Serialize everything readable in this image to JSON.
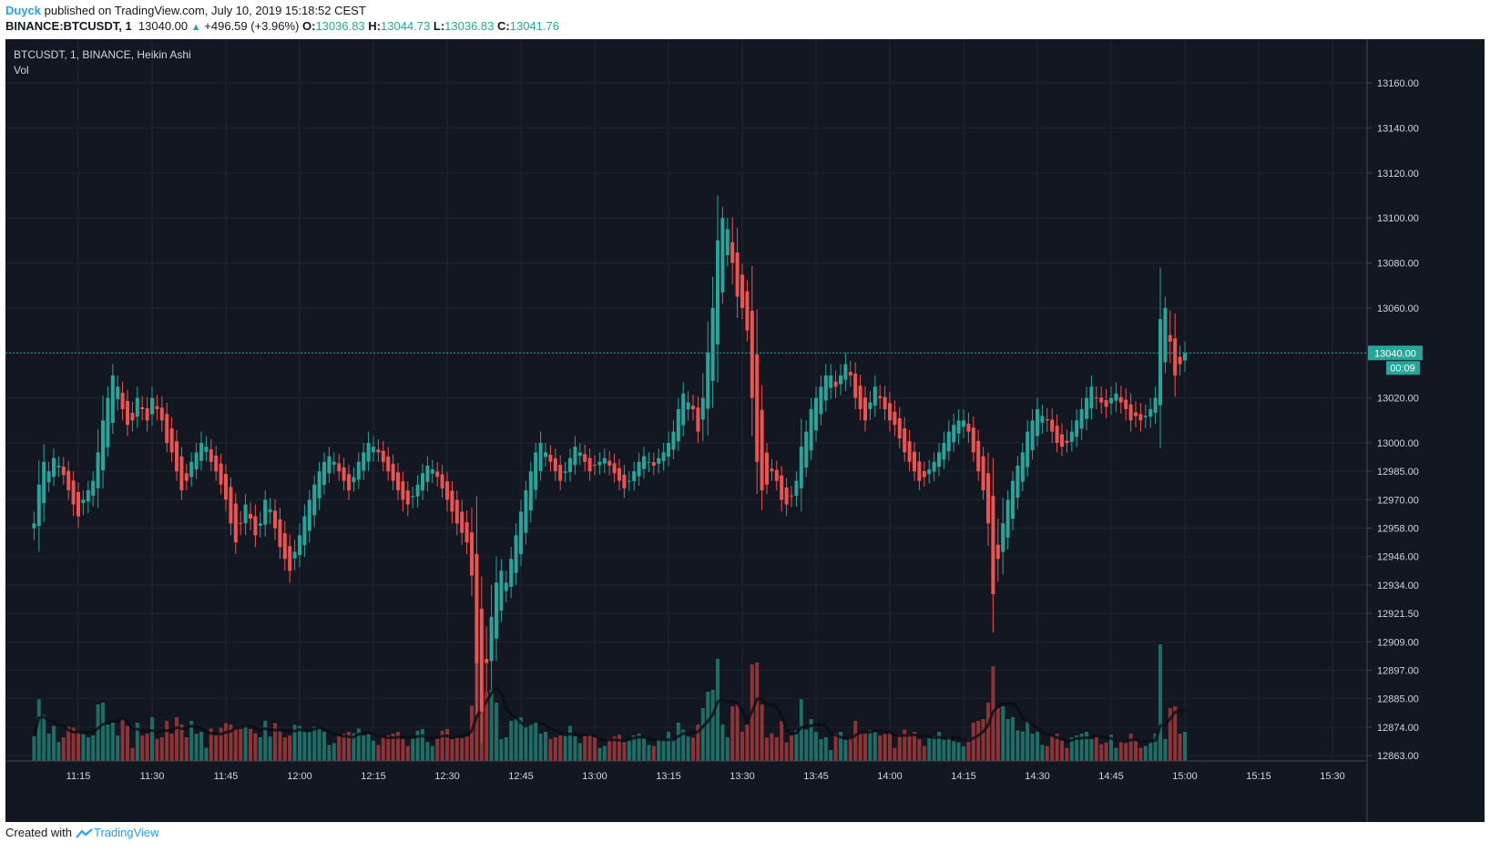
{
  "header": {
    "author": "Duyck",
    "published_text": " published on TradingView.com, July 10, 2019 15:18:52 CEST",
    "symbol_line": "BINANCE:BTCUSDT, 1",
    "last": "13040.00",
    "change": "+496.59 (+3.96%)",
    "o_label": "O:",
    "o": "13036.83",
    "h_label": "H:",
    "h": "13044.73",
    "l_label": "L:",
    "l": "13036.83",
    "c_label": "C:",
    "c": "13041.76"
  },
  "legend": {
    "title": "BTCUSDT, 1, BINANCE, Heikin Ashi",
    "indicator": "Vol"
  },
  "footer": {
    "created_with": "Created with",
    "brand": "TradingView"
  },
  "colors": {
    "background": "#131722",
    "grid": "#1f2431",
    "up": "#26a69a",
    "down": "#ef5350",
    "vol_up": "#1c6e66",
    "vol_down": "#8f3436",
    "axis_text": "#d1d4dc",
    "price_tag": "#26a69a"
  },
  "chart_data": {
    "type": "candlestick",
    "ylim": [
      12863.0,
      13180.0
    ],
    "y_ticks": [
      "13160.00",
      "13140.00",
      "13120.00",
      "13100.00",
      "13080.00",
      "13060.00",
      "13040.00",
      "13020.00",
      "13000.00",
      "12985.00",
      "12970.00",
      "12958.00",
      "12946.00",
      "12934.00",
      "12921.50",
      "12909.00",
      "12897.00",
      "12885.00",
      "12874.00",
      "12863.00"
    ],
    "x_ticks": [
      "11:15",
      "11:30",
      "11:45",
      "12:00",
      "12:15",
      "12:30",
      "12:45",
      "13:00",
      "13:15",
      "13:30",
      "13:45",
      "14:00",
      "14:15",
      "14:30",
      "14:45",
      "15:00",
      "15:15",
      "15:30"
    ],
    "x_start": "11:06",
    "minutes_per_bar": 1,
    "last_price": "13040.00",
    "countdown": "00:09",
    "close": [
      12960,
      12978,
      12990,
      12985,
      12992,
      12988,
      12983,
      12975,
      12968,
      12963,
      12970,
      12975,
      12980,
      12995,
      13010,
      13020,
      13030,
      13025,
      13015,
      13008,
      13010,
      13020,
      13015,
      13010,
      13020,
      13015,
      13010,
      13000,
      12995,
      12985,
      12975,
      12980,
      12990,
      12995,
      13000,
      12998,
      12990,
      12985,
      12978,
      12970,
      12960,
      12952,
      12960,
      12968,
      12962,
      12955,
      12960,
      12970,
      12966,
      12958,
      12950,
      12945,
      12940,
      12948,
      12955,
      12963,
      12970,
      12978,
      12985,
      12990,
      12993,
      12990,
      12985,
      12980,
      12975,
      12982,
      12990,
      12995,
      13000,
      12998,
      12995,
      12990,
      12985,
      12980,
      12975,
      12970,
      12968,
      12972,
      12978,
      12984,
      12988,
      12986,
      12982,
      12976,
      12970,
      12965,
      12960,
      12956,
      12952,
      12938,
      12900,
      12880,
      12900,
      12920,
      12935,
      12940,
      12935,
      12945,
      12955,
      12965,
      12975,
      12985,
      12995,
      13000,
      12995,
      12990,
      12985,
      12980,
      12985,
      12992,
      12998,
      12995,
      12990,
      12985,
      12988,
      12990,
      12992,
      12988,
      12984,
      12980,
      12976,
      12980,
      12985,
      12990,
      12993,
      12990,
      12988,
      12992,
      12995,
      13000,
      13005,
      13015,
      13022,
      13018,
      13015,
      13005,
      13020,
      13040,
      13060,
      13090,
      13100,
      13095,
      13080,
      13065,
      13060,
      13050,
      13020,
      12990,
      12975,
      12978,
      12985,
      12980,
      12970,
      12968,
      12972,
      12980,
      12998,
      13005,
      13015,
      13020,
      13025,
      13030,
      13030,
      13025,
      13030,
      13035,
      13030,
      13020,
      13015,
      13010,
      13018,
      13025,
      13020,
      13015,
      13010,
      13008,
      13002,
      12995,
      12990,
      12985,
      12980,
      12982,
      12986,
      12990,
      12995,
      13000,
      13005,
      13008,
      13010,
      13010,
      13005,
      12995,
      12985,
      12975,
      12960,
      12930,
      12945,
      12960,
      12970,
      12980,
      12988,
      12995,
      13005,
      13010,
      13015,
      13012,
      13010,
      13005,
      13000,
      12998,
      13000,
      13005,
      13010,
      13015,
      13020,
      13025,
      13020,
      13018,
      13016,
      13020,
      13022,
      13018,
      13015,
      13010,
      13012,
      13010,
      13012,
      13015,
      13020,
      13055,
      13060,
      13045,
      13030,
      13035,
      13040
    ]
  }
}
